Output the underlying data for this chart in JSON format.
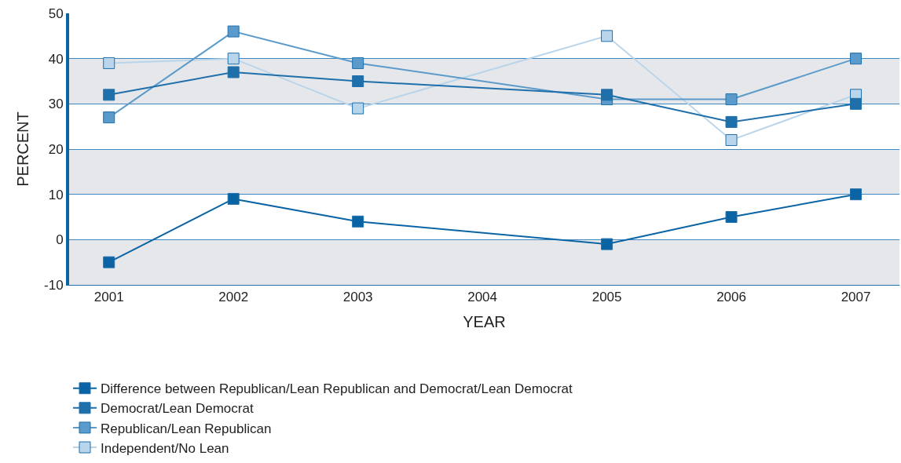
{
  "chart_data": {
    "type": "line",
    "xlabel": "YEAR",
    "ylabel": "PERCENT",
    "x": [
      2001,
      2002,
      2003,
      2005,
      2006,
      2007
    ],
    "series": [
      {
        "name": "Difference between Republican/Lean Republican and Democrat/Lean Democrat",
        "color": "#0a64a4",
        "values": [
          -5,
          9,
          4,
          -1,
          5,
          10
        ]
      },
      {
        "name": "Democrat/Lean Democrat",
        "color": "#1f6fab",
        "values": [
          32,
          37,
          35,
          32,
          26,
          30
        ]
      },
      {
        "name": "Republican/Lean Republican",
        "color": "#5a9bcb",
        "values": [
          27,
          46,
          39,
          31,
          31,
          40
        ]
      },
      {
        "name": "Independent/No Lean",
        "color": "#b9d5eb",
        "values": [
          39,
          40,
          29,
          45,
          22,
          32
        ]
      }
    ],
    "xlim": [
      2000.68,
      2007.35
    ],
    "xticks": [
      2001,
      2002,
      2003,
      2004,
      2005,
      2006,
      2007
    ],
    "ylim": [
      -10,
      50
    ],
    "yticks": [
      -10,
      0,
      10,
      20,
      30,
      40,
      50
    ],
    "bands": [
      {
        "axis": "y",
        "from": 30,
        "to": 40,
        "color": "#e6e7ea"
      },
      {
        "axis": "y",
        "from": 10,
        "to": 20,
        "color": "#e6e7ea"
      },
      {
        "axis": "y",
        "from": -10,
        "to": 0,
        "color": "#e6e7ea"
      }
    ],
    "grid": "y",
    "legend": "bottom",
    "marker": "square",
    "line_style": "solid"
  }
}
